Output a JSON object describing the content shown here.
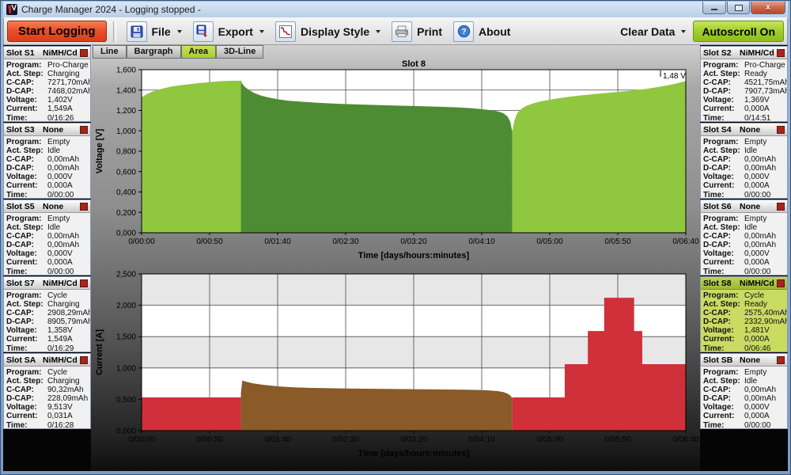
{
  "window": {
    "title": "Charge Manager 2024  - Logging stopped -",
    "controls": {
      "minimize": "minimize",
      "maximize": "maximize",
      "close": "close"
    }
  },
  "toolbar": {
    "start_logging": "Start Logging",
    "file": "File",
    "export": "Export",
    "display_style": "Display Style",
    "print": "Print",
    "about": "About",
    "clear_data": "Clear Data",
    "autoscroll": "Autoscroll On"
  },
  "icons": {
    "app": "voltcraft-logo",
    "file": "floppy-disk",
    "export": "floppy-export-arrow",
    "display_style": "line-chart",
    "print": "printer",
    "about": "question-mark-circle",
    "dropdown": "caret-down",
    "slot_indicator": "red-square-led"
  },
  "tabs": [
    {
      "label": "Line",
      "selected": false
    },
    {
      "label": "Bargraph",
      "selected": false
    },
    {
      "label": "Area",
      "selected": true
    },
    {
      "label": "3D-Line",
      "selected": false
    }
  ],
  "field_labels": [
    "Program:",
    "Act. Step:",
    "C-CAP:",
    "D-CAP:",
    "Voltage:",
    "Current:",
    "Time:"
  ],
  "slots": {
    "left": [
      {
        "name": "Slot S1",
        "chem": "NiMH/Cd",
        "highlighted": false,
        "values": [
          "Pro-Charge",
          "Charging",
          "7271,70mAh",
          "7468,02mAh",
          "1,402V",
          "1,549A",
          "0/16:26"
        ]
      },
      {
        "name": "Slot S3",
        "chem": "None",
        "highlighted": false,
        "values": [
          "Empty",
          "Idle",
          "0,00mAh",
          "0,00mAh",
          "0,000V",
          "0,000A",
          "0/00:00"
        ]
      },
      {
        "name": "Slot S5",
        "chem": "None",
        "highlighted": false,
        "values": [
          "Empty",
          "Idle",
          "0,00mAh",
          "0,00mAh",
          "0,000V",
          "0,000A",
          "0/00:00"
        ]
      },
      {
        "name": "Slot S7",
        "chem": "NiMH/Cd",
        "highlighted": false,
        "values": [
          "Cycle",
          "Charging",
          "2908,29mAh",
          "8905,79mAh",
          "1,358V",
          "1,549A",
          "0/16:29"
        ]
      },
      {
        "name": "Slot SA",
        "chem": "NiMH/Cd",
        "highlighted": false,
        "values": [
          "Cycle",
          "Charging",
          "90,32mAh",
          "228,09mAh",
          "9,513V",
          "0,031A",
          "0/16:28"
        ]
      }
    ],
    "right": [
      {
        "name": "Slot S2",
        "chem": "NiMH/Cd",
        "highlighted": false,
        "values": [
          "Pro-Charge",
          "Ready",
          "4521,75mAh",
          "7907,73mAh",
          "1,369V",
          "0,000A",
          "0/14:51"
        ]
      },
      {
        "name": "Slot S4",
        "chem": "None",
        "highlighted": false,
        "values": [
          "Empty",
          "Idle",
          "0,00mAh",
          "0,00mAh",
          "0,000V",
          "0,000A",
          "0/00:00"
        ]
      },
      {
        "name": "Slot S6",
        "chem": "None",
        "highlighted": false,
        "values": [
          "Empty",
          "Idle",
          "0,00mAh",
          "0,00mAh",
          "0,000V",
          "0,000A",
          "0/00:00"
        ]
      },
      {
        "name": "Slot S8",
        "chem": "NiMH/Cd",
        "highlighted": true,
        "values": [
          "Cycle",
          "Ready",
          "2575,40mAh",
          "2332,90mAh",
          "1,481V",
          "0,000A",
          "0/06:46"
        ]
      },
      {
        "name": "Slot SB",
        "chem": "None",
        "highlighted": false,
        "values": [
          "Empty",
          "Idle",
          "0,00mAh",
          "0,00mAh",
          "0,000V",
          "0,000A",
          "0/00:00"
        ]
      }
    ]
  },
  "colors": {
    "light_green": "#8fc73e",
    "dark_green": "#4e8c33",
    "red": "#d0303a",
    "brown": "#8a5a28",
    "band_gray": "#e7e7e7",
    "band_white": "#ffffff"
  },
  "chart_data": [
    {
      "type": "area",
      "name": "voltage",
      "title": "Slot 8",
      "ylabel": "Voltage [V]",
      "xlabel": "Time [days/hours:minutes]",
      "ylim": [
        0,
        1.6
      ],
      "ytick_step": 0.2,
      "ytick_labels": [
        "0,000",
        "0,200",
        "0,400",
        "0,600",
        "0,800",
        "1,000",
        "1,200",
        "1,400",
        "1,600"
      ],
      "xlim_minutes": [
        0,
        400
      ],
      "xtick_labels": [
        "0/00:00",
        "0/00:50",
        "0/01:40",
        "0/02:30",
        "0/03:20",
        "0/04:10",
        "0/05:00",
        "0/05:50",
        "0/06:40"
      ],
      "bands": false,
      "grid": true,
      "cursor_label": "1,48 V",
      "series": [
        {
          "name": "charge-phase-1",
          "color_key": "light_green",
          "points": [
            [
              0,
              1.33
            ],
            [
              4,
              1.36
            ],
            [
              8,
              1.385
            ],
            [
              14,
              1.41
            ],
            [
              22,
              1.435
            ],
            [
              30,
              1.45
            ],
            [
              40,
              1.465
            ],
            [
              50,
              1.478
            ],
            [
              58,
              1.487
            ],
            [
              66,
              1.49
            ],
            [
              73,
              1.492
            ]
          ]
        },
        {
          "name": "discharge-phase",
          "color_key": "dark_green",
          "points": [
            [
              73,
              1.492
            ],
            [
              74,
              1.46
            ],
            [
              76,
              1.43
            ],
            [
              79,
              1.4
            ],
            [
              83,
              1.37
            ],
            [
              88,
              1.345
            ],
            [
              94,
              1.325
            ],
            [
              100,
              1.31
            ],
            [
              108,
              1.295
            ],
            [
              118,
              1.285
            ],
            [
              130,
              1.275
            ],
            [
              145,
              1.265
            ],
            [
              160,
              1.258
            ],
            [
              175,
              1.252
            ],
            [
              190,
              1.247
            ],
            [
              205,
              1.242
            ],
            [
              220,
              1.236
            ],
            [
              232,
              1.23
            ],
            [
              242,
              1.222
            ],
            [
              250,
              1.213
            ],
            [
              257,
              1.202
            ],
            [
              262,
              1.19
            ],
            [
              266,
              1.172
            ],
            [
              269,
              1.14
            ],
            [
              271,
              1.09
            ],
            [
              272,
              1.02
            ],
            [
              272.5,
              0.98
            ]
          ]
        },
        {
          "name": "charge-phase-2",
          "color_key": "light_green",
          "points": [
            [
              272.5,
              1.0
            ],
            [
              274,
              1.1
            ],
            [
              276,
              1.17
            ],
            [
              279,
              1.215
            ],
            [
              283,
              1.247
            ],
            [
              288,
              1.27
            ],
            [
              294,
              1.29
            ],
            [
              302,
              1.31
            ],
            [
              312,
              1.33
            ],
            [
              322,
              1.347
            ],
            [
              334,
              1.362
            ],
            [
              346,
              1.377
            ],
            [
              358,
              1.392
            ],
            [
              370,
              1.41
            ],
            [
              380,
              1.43
            ],
            [
              388,
              1.45
            ],
            [
              394,
              1.468
            ],
            [
              398,
              1.482
            ],
            [
              400,
              1.487
            ]
          ]
        }
      ]
    },
    {
      "type": "area",
      "name": "current",
      "title": "",
      "ylabel": "Current [A]",
      "xlabel": "Time [days/hours:minutes]",
      "ylim": [
        0,
        2.5
      ],
      "ytick_step": 0.5,
      "ytick_labels": [
        "0,000",
        "0,500",
        "1,000",
        "1,500",
        "2,000",
        "2,500"
      ],
      "xlim_minutes": [
        0,
        400
      ],
      "xtick_labels": [
        "0/00:00",
        "0/00:50",
        "0/01:40",
        "0/02:30",
        "0/03:20",
        "0/04:10",
        "0/05:00",
        "0/05:50",
        "0/06:40"
      ],
      "bands": true,
      "grid": true,
      "cursor_label": "",
      "series": [
        {
          "name": "charge-current-1",
          "color_key": "red",
          "points": [
            [
              0,
              0.53
            ],
            [
              73,
              0.53
            ]
          ]
        },
        {
          "name": "discharge-current",
          "color_key": "brown",
          "points": [
            [
              73,
              0.6
            ],
            [
              74,
              0.8
            ],
            [
              77,
              0.78
            ],
            [
              82,
              0.755
            ],
            [
              88,
              0.735
            ],
            [
              95,
              0.718
            ],
            [
              103,
              0.703
            ],
            [
              112,
              0.692
            ],
            [
              122,
              0.684
            ],
            [
              135,
              0.678
            ],
            [
              150,
              0.673
            ],
            [
              165,
              0.669
            ],
            [
              180,
              0.666
            ],
            [
              195,
              0.663
            ],
            [
              210,
              0.66
            ],
            [
              225,
              0.657
            ],
            [
              238,
              0.653
            ],
            [
              248,
              0.648
            ],
            [
              256,
              0.64
            ],
            [
              262,
              0.63
            ],
            [
              266,
              0.615
            ],
            [
              269,
              0.59
            ],
            [
              271,
              0.56
            ],
            [
              272.5,
              0.52
            ]
          ]
        },
        {
          "name": "charge-current-2",
          "color_key": "red",
          "points": [
            [
              272.5,
              0.53
            ],
            [
              311,
              0.53
            ],
            [
              311,
              1.06
            ],
            [
              328,
              1.06
            ],
            [
              328,
              1.59
            ],
            [
              340,
              1.59
            ],
            [
              340,
              2.12
            ],
            [
              362,
              2.12
            ],
            [
              362,
              1.59
            ],
            [
              368,
              1.59
            ],
            [
              368,
              1.06
            ],
            [
              400,
              1.06
            ]
          ]
        }
      ]
    }
  ]
}
